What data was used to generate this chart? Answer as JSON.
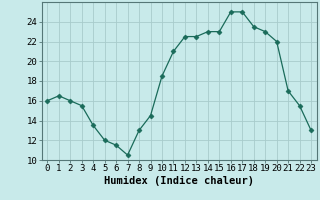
{
  "x": [
    0,
    1,
    2,
    3,
    4,
    5,
    6,
    7,
    8,
    9,
    10,
    11,
    12,
    13,
    14,
    15,
    16,
    17,
    18,
    19,
    20,
    21,
    22,
    23
  ],
  "y": [
    16,
    16.5,
    16,
    15.5,
    13.5,
    12,
    11.5,
    10.5,
    13,
    14.5,
    18.5,
    21,
    22.5,
    22.5,
    23,
    23,
    25,
    25,
    23.5,
    23,
    22,
    17,
    15.5,
    13
  ],
  "xlabel": "Humidex (Indice chaleur)",
  "line_color": "#1a6b5a",
  "marker": "D",
  "marker_size": 2.5,
  "bg_color": "#c8eaea",
  "grid_color": "#a8cccc",
  "ylim": [
    10,
    26
  ],
  "xlim": [
    -0.5,
    23.5
  ],
  "yticks": [
    10,
    12,
    14,
    16,
    18,
    20,
    22,
    24
  ],
  "xtick_labels": [
    "0",
    "1",
    "2",
    "3",
    "4",
    "5",
    "6",
    "7",
    "8",
    "9",
    "10",
    "11",
    "12",
    "13",
    "14",
    "15",
    "16",
    "17",
    "18",
    "19",
    "20",
    "21",
    "22",
    "23"
  ],
  "xlabel_fontsize": 7.5,
  "tick_fontsize": 6.5
}
